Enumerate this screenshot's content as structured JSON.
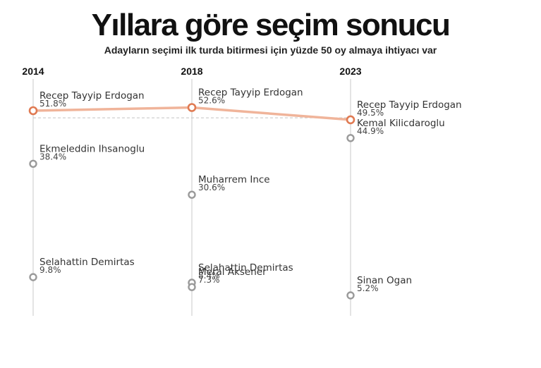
{
  "title": "Yıllara göre seçim sonucu",
  "subtitle": "Adayların seçimi ilk turda bitirmesi için yüzde 50 oy almaya ihtiyacı var",
  "chart_data": {
    "type": "line",
    "x": [
      "2014",
      "2018",
      "2023"
    ],
    "threshold": 50,
    "threshold_style": "dashed",
    "highlight_color": "#e07a52",
    "highlight_line_color": "#f0b49a",
    "other_color": "#9a9a9a",
    "ylim": [
      0,
      56
    ],
    "series": [
      {
        "name": "Recep Tayyip Erdogan",
        "highlight": true,
        "points": [
          {
            "x": "2014",
            "y": 51.8,
            "label": "51.8%"
          },
          {
            "x": "2018",
            "y": 52.6,
            "label": "52.6%"
          },
          {
            "x": "2023",
            "y": 49.5,
            "label": "49.5%"
          }
        ]
      },
      {
        "name": "Ekmeleddin Ihsanoglu",
        "points": [
          {
            "x": "2014",
            "y": 38.4,
            "label": "38.4%"
          }
        ]
      },
      {
        "name": "Selahattin Demirtas",
        "points": [
          {
            "x": "2014",
            "y": 9.8,
            "label": "9.8%"
          },
          {
            "x": "2018",
            "y": 8.4,
            "label": "8.4%"
          }
        ]
      },
      {
        "name": "Muharrem Ince",
        "points": [
          {
            "x": "2018",
            "y": 30.6,
            "label": "30.6%"
          }
        ]
      },
      {
        "name": "Meral Aksener",
        "points": [
          {
            "x": "2018",
            "y": 7.3,
            "label": "7.3%"
          }
        ]
      },
      {
        "name": "Kemal Kilicdaroglu",
        "points": [
          {
            "x": "2023",
            "y": 44.9,
            "label": "44.9%"
          }
        ]
      },
      {
        "name": "Sinan Ogan",
        "points": [
          {
            "x": "2023",
            "y": 5.2,
            "label": "5.2%"
          }
        ]
      }
    ]
  }
}
